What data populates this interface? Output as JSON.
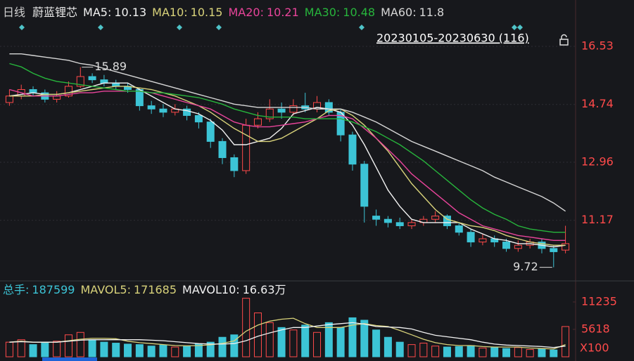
{
  "chart_data": [
    {
      "type": "candlestick",
      "period": "日线",
      "title": "蔚蓝锂芯",
      "range_label": "20230105-20230630 (116)",
      "up_color": "#ff4a4a",
      "down_color": "#3cc4d6",
      "ylim": [
        9.3,
        17.96
      ],
      "yticks": [
        16.53,
        14.74,
        12.96,
        11.17
      ],
      "grid": true,
      "open": [
        14.8,
        15.0,
        15.2,
        15.1,
        14.9,
        15.0,
        15.3,
        15.6,
        15.5,
        15.4,
        15.3,
        15.2,
        14.7,
        14.6,
        14.5,
        14.6,
        14.4,
        14.2,
        13.6,
        13.1,
        12.7,
        14.1,
        14.3,
        14.6,
        14.5,
        14.7,
        14.6,
        14.8,
        14.5,
        13.8,
        12.9,
        11.3,
        11.2,
        11.1,
        11.0,
        11.1,
        11.2,
        11.3,
        11.0,
        10.8,
        10.5,
        10.6,
        10.5,
        10.3,
        10.4,
        10.5,
        10.3,
        10.25
      ],
      "close": [
        15.0,
        15.2,
        15.1,
        14.9,
        15.0,
        15.3,
        15.6,
        15.5,
        15.4,
        15.3,
        15.2,
        14.7,
        14.6,
        14.5,
        14.6,
        14.4,
        14.2,
        13.6,
        13.1,
        12.7,
        14.1,
        14.3,
        14.6,
        14.5,
        14.7,
        14.6,
        14.8,
        14.5,
        13.8,
        12.9,
        11.6,
        11.2,
        11.1,
        11.0,
        11.1,
        11.2,
        11.3,
        11.0,
        10.8,
        10.5,
        10.6,
        10.5,
        10.3,
        10.4,
        10.5,
        10.3,
        10.2,
        10.45
      ],
      "high": [
        15.2,
        15.35,
        15.3,
        15.2,
        15.15,
        15.45,
        15.89,
        15.7,
        15.65,
        15.5,
        15.4,
        15.25,
        14.85,
        14.75,
        14.75,
        14.7,
        14.5,
        14.3,
        13.7,
        13.2,
        14.3,
        14.5,
        14.9,
        14.8,
        14.9,
        15.1,
        15.0,
        14.9,
        14.6,
        13.9,
        13.0,
        11.5,
        11.3,
        11.25,
        11.2,
        11.3,
        11.45,
        11.35,
        11.1,
        10.9,
        10.75,
        10.7,
        10.6,
        10.55,
        10.6,
        10.6,
        10.4,
        11.0
      ],
      "low": [
        14.7,
        14.9,
        15.0,
        14.8,
        14.8,
        14.95,
        15.25,
        15.4,
        15.3,
        15.2,
        15.1,
        14.55,
        14.45,
        14.35,
        14.4,
        14.25,
        14.0,
        13.4,
        12.9,
        12.5,
        12.6,
        14.0,
        14.2,
        14.3,
        14.4,
        14.5,
        14.5,
        14.4,
        13.6,
        12.7,
        11.1,
        11.0,
        10.95,
        10.9,
        10.9,
        11.0,
        11.1,
        10.9,
        10.7,
        10.35,
        10.4,
        10.35,
        10.2,
        10.2,
        10.3,
        10.15,
        9.72,
        10.15
      ],
      "series": [
        {
          "name": "MA5:",
          "last": 10.13,
          "color": "#f2f2f2",
          "values": [
            15.0,
            15.05,
            15.1,
            15.05,
            15.05,
            15.1,
            15.2,
            15.3,
            15.4,
            15.4,
            15.4,
            15.2,
            15.0,
            14.8,
            14.6,
            14.55,
            14.45,
            14.25,
            13.95,
            13.5,
            13.5,
            13.6,
            13.7,
            14.0,
            14.45,
            14.55,
            14.65,
            14.6,
            14.5,
            14.1,
            13.5,
            12.8,
            12.1,
            11.6,
            11.2,
            11.1,
            11.1,
            11.1,
            11.1,
            10.9,
            10.75,
            10.6,
            10.55,
            10.45,
            10.45,
            10.4,
            10.35,
            10.4
          ]
        },
        {
          "name": "MA10:",
          "last": 10.15,
          "color": "#d8d27a",
          "values": [
            15.0,
            15.0,
            15.0,
            15.05,
            15.05,
            15.1,
            15.15,
            15.2,
            15.25,
            15.3,
            15.3,
            15.25,
            15.2,
            15.1,
            15.0,
            14.85,
            14.7,
            14.5,
            14.25,
            14.0,
            13.8,
            13.6,
            13.6,
            13.7,
            13.9,
            14.1,
            14.3,
            14.55,
            14.6,
            14.4,
            14.1,
            13.7,
            13.3,
            12.8,
            12.3,
            11.9,
            11.5,
            11.2,
            11.1,
            11.0,
            10.95,
            10.85,
            10.7,
            10.6,
            10.5,
            10.45,
            10.4,
            10.4
          ]
        },
        {
          "name": "MA20:",
          "last": 10.21,
          "color": "#e8449a",
          "values": [
            15.2,
            15.1,
            15.0,
            15.0,
            15.0,
            15.05,
            15.1,
            15.1,
            15.15,
            15.15,
            15.15,
            15.15,
            15.1,
            15.0,
            14.9,
            14.8,
            14.7,
            14.6,
            14.4,
            14.2,
            14.1,
            14.05,
            14.05,
            14.1,
            14.15,
            14.2,
            14.3,
            14.4,
            14.4,
            14.3,
            14.0,
            13.7,
            13.35,
            13.0,
            12.6,
            12.3,
            12.0,
            11.7,
            11.4,
            11.2,
            11.0,
            10.9,
            10.8,
            10.7,
            10.65,
            10.6,
            10.55,
            10.55
          ]
        },
        {
          "name": "MA30:",
          "last": 10.48,
          "color": "#27b53c",
          "values": [
            16.0,
            15.9,
            15.7,
            15.55,
            15.45,
            15.4,
            15.35,
            15.3,
            15.25,
            15.2,
            15.15,
            15.15,
            15.1,
            15.1,
            15.05,
            15.0,
            14.95,
            14.85,
            14.75,
            14.6,
            14.5,
            14.4,
            14.35,
            14.35,
            14.35,
            14.3,
            14.3,
            14.3,
            14.3,
            14.2,
            14.05,
            13.9,
            13.7,
            13.5,
            13.25,
            13.0,
            12.7,
            12.4,
            12.1,
            11.8,
            11.55,
            11.35,
            11.2,
            11.0,
            10.9,
            10.85,
            10.8,
            10.8
          ]
        },
        {
          "name": "MA60:",
          "last": 11.8,
          "color": "#d6d6d6",
          "values": [
            16.3,
            16.3,
            16.25,
            16.2,
            16.15,
            16.1,
            16.0,
            15.95,
            15.85,
            15.75,
            15.65,
            15.55,
            15.45,
            15.35,
            15.25,
            15.15,
            15.05,
            14.95,
            14.85,
            14.75,
            14.7,
            14.65,
            14.65,
            14.65,
            14.65,
            14.65,
            14.6,
            14.6,
            14.6,
            14.5,
            14.35,
            14.2,
            14.0,
            13.8,
            13.6,
            13.45,
            13.3,
            13.15,
            13.0,
            12.85,
            12.7,
            12.5,
            12.35,
            12.2,
            12.05,
            11.9,
            11.7,
            11.45
          ]
        }
      ],
      "annotations": [
        15.89,
        9.72
      ]
    },
    {
      "type": "bar",
      "title": "总手:",
      "last": 187599,
      "color": "#3cc4d6",
      "unit": "X100",
      "ylim": [
        0,
        15550
      ],
      "yticks": [
        11235,
        5618
      ],
      "values": [
        3000,
        3500,
        2500,
        2800,
        3200,
        4500,
        5000,
        3500,
        3000,
        2800,
        2600,
        2500,
        2200,
        2400,
        2000,
        2200,
        2600,
        3000,
        4000,
        4500,
        12000,
        9000,
        7000,
        6000,
        5500,
        6500,
        5000,
        7000,
        6000,
        8000,
        7500,
        5500,
        4000,
        3000,
        2500,
        2800,
        2200,
        2000,
        2100,
        2300,
        1800,
        2000,
        1700,
        1900,
        1500,
        1600,
        1400,
        6200
      ],
      "series": [
        {
          "name": "MAVOL5:",
          "last": 171685,
          "color": "#d8d27a",
          "values": [
            3000,
            3200,
            3000,
            2950,
            3000,
            3300,
            3600,
            3800,
            3800,
            3700,
            3200,
            2900,
            2700,
            2500,
            2300,
            2250,
            2300,
            2450,
            2750,
            3250,
            5250,
            6500,
            7300,
            7700,
            7900,
            6800,
            6000,
            6000,
            6000,
            6500,
            6800,
            6400,
            6200,
            5400,
            4500,
            3600,
            2900,
            2500,
            2300,
            2300,
            2100,
            2000,
            2000,
            2000,
            1800,
            1700,
            1600,
            2500
          ]
        },
        {
          "name": "MAVOL10:",
          "last": {
            "value": 166300,
            "label": "16.63万"
          },
          "color": "#f2f2f2",
          "values": [
            3000,
            3100,
            3000,
            3000,
            3000,
            3200,
            3400,
            3500,
            3500,
            3500,
            3500,
            3500,
            3400,
            3300,
            3100,
            2900,
            2700,
            2600,
            2600,
            2700,
            3300,
            4200,
            4900,
            5500,
            6000,
            6000,
            6300,
            6600,
            6800,
            7000,
            6700,
            6200,
            6100,
            6000,
            5700,
            5000,
            4400,
            4100,
            3800,
            3500,
            3000,
            2600,
            2400,
            2300,
            2200,
            2100,
            1900,
            2200
          ]
        }
      ]
    }
  ]
}
